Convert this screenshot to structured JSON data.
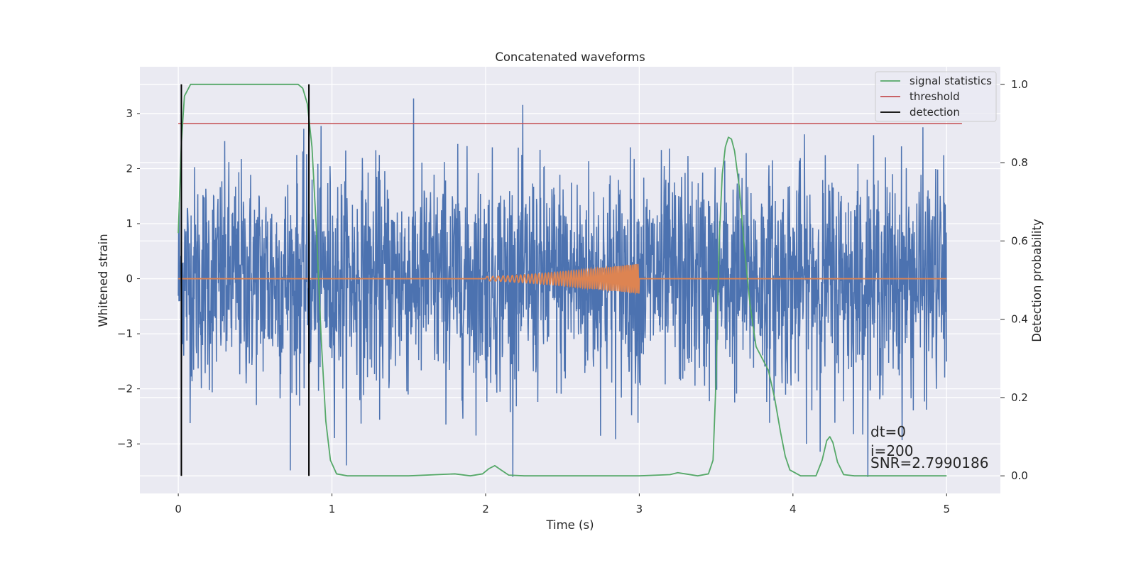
{
  "chart_data": {
    "type": "line",
    "title": "Concatenated waveforms",
    "xlabel": "Time (s)",
    "ylabel": "Whitened strain",
    "y2label": "Detection probability",
    "xlim": [
      -0.25,
      5.35
    ],
    "ylim": [
      -3.9,
      3.85
    ],
    "y2lim": [
      -0.045,
      1.045
    ],
    "x_ticks": [
      0,
      1,
      2,
      3,
      4,
      5
    ],
    "y_ticks": [
      -3,
      -2,
      -1,
      0,
      1,
      2,
      3
    ],
    "y_tick_labels": [
      "−3",
      "−2",
      "−1",
      "0",
      "1",
      "2",
      "3"
    ],
    "y2_ticks": [
      0.0,
      0.2,
      0.4,
      0.6,
      0.8,
      1.0
    ],
    "y2_tick_labels": [
      "0.0",
      "0.2",
      "0.4",
      "0.6",
      "0.8",
      "1.0"
    ],
    "grid": true,
    "legend_position": "top-right",
    "series": [
      {
        "key": "strain",
        "color": "#4c72b0",
        "axis": "left",
        "x_range": [
          0,
          5
        ],
        "description": "whitened noisy strain, approx. Gaussian with peaks up to about 3.5"
      },
      {
        "key": "injection",
        "color": "#dd8452",
        "axis": "left",
        "chirp_x_range": [
          2,
          3
        ],
        "chirp_amplitude_range": [
          0.04,
          0.27
        ]
      },
      {
        "name": "signal statistics",
        "color": "#55a868",
        "axis": "right",
        "points": [
          [
            0.0,
            0.62
          ],
          [
            0.02,
            0.85
          ],
          [
            0.04,
            0.97
          ],
          [
            0.08,
            1.0
          ],
          [
            0.2,
            1.0
          ],
          [
            0.5,
            1.0
          ],
          [
            0.78,
            1.0
          ],
          [
            0.81,
            0.99
          ],
          [
            0.84,
            0.95
          ],
          [
            0.87,
            0.84
          ],
          [
            0.9,
            0.62
          ],
          [
            0.93,
            0.35
          ],
          [
            0.96,
            0.14
          ],
          [
            0.99,
            0.04
          ],
          [
            1.03,
            0.005
          ],
          [
            1.1,
            0.0
          ],
          [
            1.5,
            0.0
          ],
          [
            1.8,
            0.005
          ],
          [
            1.9,
            0.0
          ],
          [
            1.98,
            0.005
          ],
          [
            2.02,
            0.018
          ],
          [
            2.06,
            0.026
          ],
          [
            2.1,
            0.015
          ],
          [
            2.15,
            0.002
          ],
          [
            2.25,
            0.0
          ],
          [
            2.6,
            0.0
          ],
          [
            3.0,
            0.0
          ],
          [
            3.2,
            0.003
          ],
          [
            3.25,
            0.008
          ],
          [
            3.3,
            0.005
          ],
          [
            3.38,
            0.0
          ],
          [
            3.45,
            0.005
          ],
          [
            3.48,
            0.04
          ],
          [
            3.5,
            0.25
          ],
          [
            3.52,
            0.6
          ],
          [
            3.54,
            0.77
          ],
          [
            3.56,
            0.84
          ],
          [
            3.58,
            0.865
          ],
          [
            3.6,
            0.86
          ],
          [
            3.62,
            0.83
          ],
          [
            3.65,
            0.74
          ],
          [
            3.68,
            0.6
          ],
          [
            3.72,
            0.44
          ],
          [
            3.76,
            0.33
          ],
          [
            3.8,
            0.3
          ],
          [
            3.84,
            0.27
          ],
          [
            3.88,
            0.2
          ],
          [
            3.92,
            0.11
          ],
          [
            3.95,
            0.05
          ],
          [
            3.98,
            0.015
          ],
          [
            4.05,
            0.0
          ],
          [
            4.15,
            0.0
          ],
          [
            4.19,
            0.04
          ],
          [
            4.22,
            0.09
          ],
          [
            4.24,
            0.1
          ],
          [
            4.26,
            0.085
          ],
          [
            4.29,
            0.035
          ],
          [
            4.33,
            0.003
          ],
          [
            4.4,
            0.0
          ],
          [
            5.0,
            0.0
          ]
        ]
      },
      {
        "name": "threshold",
        "color": "#c44e52",
        "axis": "right",
        "value": 0.9,
        "x_range": [
          0,
          5.1
        ]
      },
      {
        "name": "detection",
        "color": "#000000",
        "axis": "right",
        "x_positions": [
          0.02,
          0.85
        ],
        "y_range": [
          0.0,
          1.0
        ]
      }
    ],
    "annotations": [
      "dt=0",
      "i=200",
      "SNR=2.7990186"
    ]
  }
}
